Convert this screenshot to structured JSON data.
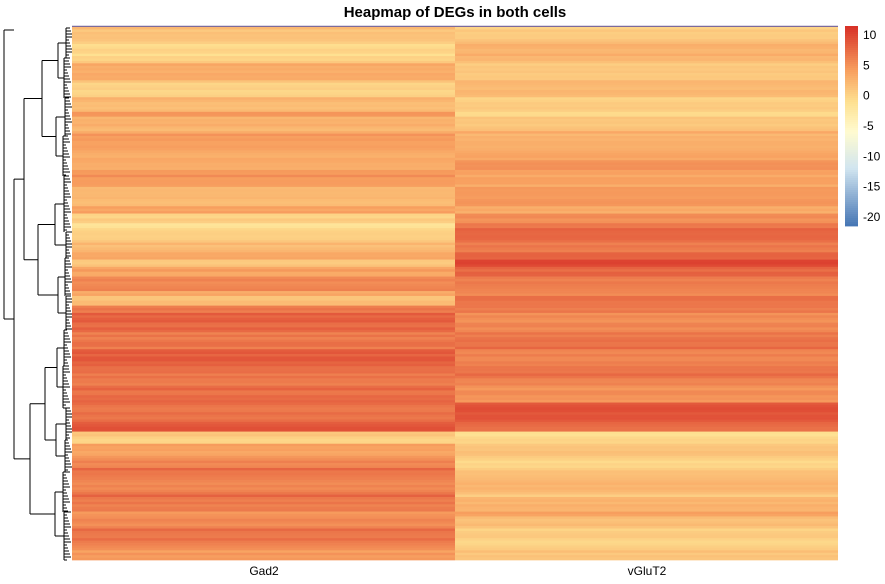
{
  "chart_data": {
    "type": "heatmap",
    "title": "Heapmap of DEGs in both cells",
    "columns": [
      "Gad2",
      "vGluT2"
    ],
    "colorbar": {
      "ticks": [
        10,
        5,
        0,
        -5,
        -10,
        -15,
        -20
      ],
      "range": [
        -21.5,
        11.5
      ],
      "colors": {
        "low": "#4575b4",
        "mid_low": "#d1e5f0",
        "mid": "#fffbd0",
        "light": "#fee090",
        "mid_high": "#f8a160",
        "high": "#d73027"
      }
    },
    "row_blocks": [
      {
        "rows": 5,
        "values": [
          1.5,
          0.5
        ]
      },
      {
        "rows": 10,
        "values": [
          1.0,
          1.5
        ]
      },
      {
        "rows": 8,
        "values": [
          3.0,
          1.0
        ]
      },
      {
        "rows": 12,
        "values": [
          2.0,
          0.5
        ]
      },
      {
        "rows": 8,
        "values": [
          4.0,
          0.0
        ]
      },
      {
        "rows": 12,
        "values": [
          4.5,
          2.5
        ]
      },
      {
        "rows": 10,
        "values": [
          5.0,
          3.5
        ]
      },
      {
        "rows": 12,
        "values": [
          4.0,
          3.0
        ]
      },
      {
        "rows": 6,
        "values": [
          0.5,
          5.0
        ]
      },
      {
        "rows": 10,
        "values": [
          2.0,
          6.5
        ]
      },
      {
        "rows": 6,
        "values": [
          3.0,
          8.5
        ]
      },
      {
        "rows": 10,
        "values": [
          5.5,
          6.5
        ]
      },
      {
        "rows": 6,
        "values": [
          3.5,
          5.5
        ]
      },
      {
        "rows": 14,
        "values": [
          8.0,
          5.5
        ]
      },
      {
        "rows": 16,
        "values": [
          8.5,
          6.0
        ]
      },
      {
        "rows": 10,
        "values": [
          7.5,
          5.0
        ]
      },
      {
        "rows": 6,
        "values": [
          8.5,
          8.0
        ]
      },
      {
        "rows": 6,
        "values": [
          9.0,
          7.5
        ]
      },
      {
        "rows": 5,
        "values": [
          1.0,
          -1.0
        ]
      },
      {
        "rows": 10,
        "values": [
          5.5,
          0.0
        ]
      },
      {
        "rows": 12,
        "values": [
          7.5,
          1.0
        ]
      },
      {
        "rows": 8,
        "values": [
          6.5,
          2.5
        ]
      },
      {
        "rows": 10,
        "values": [
          7.0,
          0.5
        ]
      },
      {
        "rows": 8,
        "values": [
          6.0,
          0.0
        ]
      }
    ]
  }
}
